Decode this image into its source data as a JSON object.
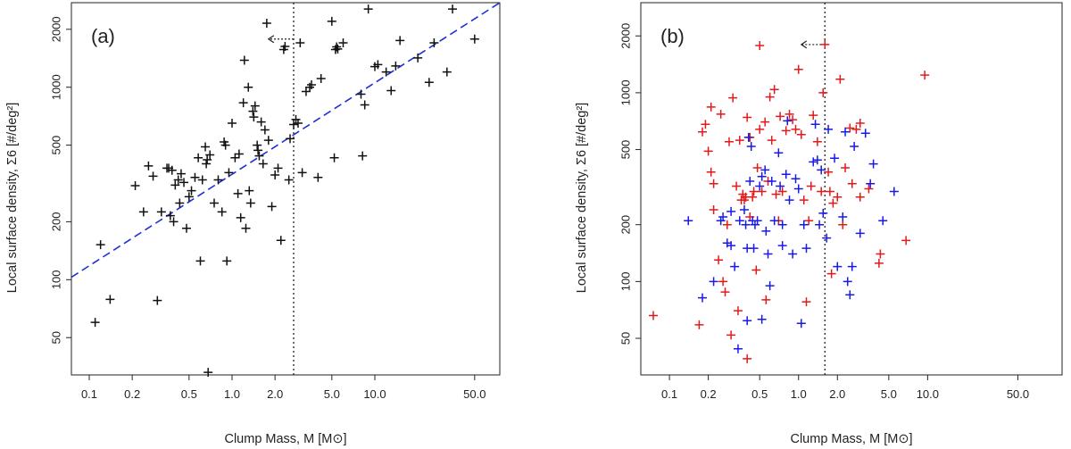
{
  "chart_data": [
    {
      "type": "scatter",
      "panel_label": "(a)",
      "xlabel": "Clump Mass, M [M⊙]",
      "ylabel": "Local surface density, Σ6 [#/deg²]",
      "log_x": true,
      "log_y": true,
      "xlim": [
        0.075,
        75
      ],
      "ylim": [
        32,
        2750
      ],
      "x_ticks": [
        0.1,
        0.2,
        0.5,
        1.0,
        2.0,
        5.0,
        10.0,
        50.0
      ],
      "x_tick_labels": [
        "0.1",
        "0.2",
        "0.5",
        "1.0",
        "2.0",
        "5.0",
        "10.0",
        "50.0"
      ],
      "y_ticks": [
        50,
        100,
        200,
        500,
        1000,
        2000
      ],
      "y_tick_labels": [
        "50",
        "100",
        "200",
        "500",
        "1000",
        "2000"
      ],
      "vline_x": 2.7,
      "arrow": {
        "from": [
          2.7,
          1780
        ],
        "to": [
          1.8,
          1780
        ]
      },
      "fit_line": {
        "color": "#1f2fd6",
        "style": "dashed",
        "x": [
          0.075,
          75
        ],
        "y": [
          103,
          2750
        ]
      },
      "series": [
        {
          "color": "#111111",
          "points": [
            [
              0.11,
              60
            ],
            [
              0.12,
              152
            ],
            [
              0.14,
              79
            ],
            [
              0.21,
              308
            ],
            [
              0.24,
              225
            ],
            [
              0.26,
              390
            ],
            [
              0.28,
              345
            ],
            [
              0.3,
              78
            ],
            [
              0.32,
              225
            ],
            [
              0.35,
              380
            ],
            [
              0.36,
              380
            ],
            [
              0.37,
              215
            ],
            [
              0.38,
              370
            ],
            [
              0.39,
              200
            ],
            [
              0.4,
              310
            ],
            [
              0.42,
              330
            ],
            [
              0.43,
              250
            ],
            [
              0.44,
              355
            ],
            [
              0.46,
              320
            ],
            [
              0.48,
              185
            ],
            [
              0.5,
              270
            ],
            [
              0.52,
              290
            ],
            [
              0.55,
              340
            ],
            [
              0.58,
              430
            ],
            [
              0.6,
              125
            ],
            [
              0.62,
              330
            ],
            [
              0.65,
              490
            ],
            [
              0.66,
              400
            ],
            [
              0.67,
              420
            ],
            [
              0.68,
              33
            ],
            [
              0.7,
              445
            ],
            [
              0.75,
              250
            ],
            [
              0.8,
              330
            ],
            [
              0.85,
              225
            ],
            [
              0.88,
              520
            ],
            [
              0.9,
              500
            ],
            [
              0.92,
              125
            ],
            [
              0.95,
              360
            ],
            [
              1.0,
              650
            ],
            [
              1.05,
              430
            ],
            [
              1.1,
              280
            ],
            [
              1.12,
              450
            ],
            [
              1.15,
              210
            ],
            [
              1.2,
              830
            ],
            [
              1.22,
              1380
            ],
            [
              1.25,
              185
            ],
            [
              1.3,
              1000
            ],
            [
              1.32,
              290
            ],
            [
              1.35,
              250
            ],
            [
              1.4,
              750
            ],
            [
              1.42,
              700
            ],
            [
              1.45,
              800
            ],
            [
              1.5,
              500
            ],
            [
              1.52,
              470
            ],
            [
              1.55,
              440
            ],
            [
              1.6,
              660
            ],
            [
              1.65,
              400
            ],
            [
              1.7,
              600
            ],
            [
              1.75,
              2150
            ],
            [
              1.8,
              530
            ],
            [
              1.9,
              240
            ],
            [
              2.0,
              350
            ],
            [
              2.1,
              380
            ],
            [
              2.2,
              160
            ],
            [
              2.3,
              1570
            ],
            [
              2.35,
              1630
            ],
            [
              2.5,
              330
            ],
            [
              2.55,
              540
            ],
            [
              2.7,
              640
            ],
            [
              2.8,
              680
            ],
            [
              2.9,
              650
            ],
            [
              3.0,
              1700
            ],
            [
              3.1,
              360
            ],
            [
              3.3,
              950
            ],
            [
              3.5,
              1000
            ],
            [
              3.6,
              1030
            ],
            [
              4.0,
              340
            ],
            [
              4.2,
              1110
            ],
            [
              5.0,
              2200
            ],
            [
              5.2,
              430
            ],
            [
              5.3,
              1570
            ],
            [
              5.4,
              1620
            ],
            [
              5.5,
              1580
            ],
            [
              6.0,
              1700
            ],
            [
              8.0,
              920
            ],
            [
              8.2,
              440
            ],
            [
              8.5,
              810
            ],
            [
              9.0,
              2550
            ],
            [
              10.0,
              1280
            ],
            [
              10.5,
              1310
            ],
            [
              12.0,
              1200
            ],
            [
              13.0,
              960
            ],
            [
              14.0,
              1290
            ],
            [
              15.0,
              1750
            ],
            [
              20.0,
              1420
            ],
            [
              24.0,
              1060
            ],
            [
              26.0,
              1700
            ],
            [
              32.0,
              1200
            ],
            [
              35.0,
              2550
            ],
            [
              50.0,
              1780
            ]
          ]
        }
      ]
    },
    {
      "type": "scatter",
      "panel_label": "(b)",
      "xlabel": "Clump Mass, M [M⊙]",
      "ylabel": "Local surface density, Σ6 [#/deg²]",
      "log_x": true,
      "log_y": true,
      "xlim": [
        0.06,
        110
      ],
      "ylim": [
        32,
        3000
      ],
      "x_ticks": [
        0.1,
        0.2,
        0.5,
        1.0,
        2.0,
        5.0,
        10.0,
        50.0
      ],
      "x_tick_labels": [
        "0.1",
        "0.2",
        "0.5",
        "1.0",
        "2.0",
        "5.0",
        "10.0",
        "50.0"
      ],
      "y_ticks": [
        50,
        100,
        200,
        500,
        1000,
        2000
      ],
      "y_tick_labels": [
        "50",
        "100",
        "200",
        "500",
        "1000",
        "2000"
      ],
      "vline_x": 1.6,
      "arrow": {
        "from": [
          1.6,
          1800
        ],
        "to": [
          1.05,
          1800
        ]
      },
      "series": [
        {
          "color": "#e31a1c",
          "points": [
            [
              0.075,
              66
            ],
            [
              0.17,
              59
            ],
            [
              0.18,
              620
            ],
            [
              0.19,
              680
            ],
            [
              0.2,
              490
            ],
            [
              0.21,
              840
            ],
            [
              0.21,
              380
            ],
            [
              0.22,
              330
            ],
            [
              0.22,
              240
            ],
            [
              0.24,
              130
            ],
            [
              0.25,
              770
            ],
            [
              0.26,
              100
            ],
            [
              0.27,
              88
            ],
            [
              0.28,
              200
            ],
            [
              0.29,
              550
            ],
            [
              0.3,
              52
            ],
            [
              0.31,
              940
            ],
            [
              0.33,
              320
            ],
            [
              0.34,
              70
            ],
            [
              0.35,
              560
            ],
            [
              0.36,
              270
            ],
            [
              0.37,
              290
            ],
            [
              0.38,
              270
            ],
            [
              0.39,
              280
            ],
            [
              0.4,
              39
            ],
            [
              0.4,
              740
            ],
            [
              0.42,
              580
            ],
            [
              0.42,
              220
            ],
            [
              0.44,
              280
            ],
            [
              0.45,
              300
            ],
            [
              0.47,
              115
            ],
            [
              0.48,
              400
            ],
            [
              0.5,
              1780
            ],
            [
              0.5,
              640
            ],
            [
              0.52,
              300
            ],
            [
              0.55,
              700
            ],
            [
              0.56,
              80
            ],
            [
              0.58,
              340
            ],
            [
              0.6,
              950
            ],
            [
              0.62,
              560
            ],
            [
              0.65,
              1040
            ],
            [
              0.67,
              290
            ],
            [
              0.7,
              210
            ],
            [
              0.72,
              750
            ],
            [
              0.75,
              300
            ],
            [
              0.8,
              630
            ],
            [
              0.85,
              770
            ],
            [
              0.9,
              720
            ],
            [
              0.95,
              640
            ],
            [
              1.0,
              1330
            ],
            [
              1.05,
              600
            ],
            [
              1.1,
              270
            ],
            [
              1.15,
              78
            ],
            [
              1.2,
              210
            ],
            [
              1.25,
              320
            ],
            [
              1.3,
              760
            ],
            [
              1.4,
              550
            ],
            [
              1.5,
              300
            ],
            [
              1.55,
              1000
            ],
            [
              1.6,
              1800
            ],
            [
              1.7,
              380
            ],
            [
              1.75,
              300
            ],
            [
              1.8,
              110
            ],
            [
              1.85,
              260
            ],
            [
              2.0,
              280
            ],
            [
              2.1,
              1180
            ],
            [
              2.2,
              200
            ],
            [
              2.3,
              400
            ],
            [
              2.5,
              650
            ],
            [
              2.6,
              330
            ],
            [
              2.8,
              640
            ],
            [
              3.0,
              690
            ],
            [
              3.0,
              280
            ],
            [
              3.5,
              310
            ],
            [
              4.2,
              125
            ],
            [
              4.3,
              140
            ],
            [
              6.8,
              165
            ],
            [
              9.5,
              1240
            ]
          ]
        },
        {
          "color": "#1a1ae6",
          "points": [
            [
              0.14,
              210
            ],
            [
              0.18,
              82
            ],
            [
              0.22,
              100
            ],
            [
              0.25,
              210
            ],
            [
              0.26,
              220
            ],
            [
              0.28,
              160
            ],
            [
              0.3,
              155
            ],
            [
              0.3,
              235
            ],
            [
              0.32,
              120
            ],
            [
              0.34,
              44
            ],
            [
              0.35,
              210
            ],
            [
              0.38,
              240
            ],
            [
              0.39,
              200
            ],
            [
              0.4,
              62
            ],
            [
              0.4,
              150
            ],
            [
              0.41,
              580
            ],
            [
              0.42,
              340
            ],
            [
              0.43,
              520
            ],
            [
              0.44,
              210
            ],
            [
              0.45,
              150
            ],
            [
              0.46,
              200
            ],
            [
              0.48,
              210
            ],
            [
              0.5,
              320
            ],
            [
              0.52,
              360
            ],
            [
              0.52,
              63
            ],
            [
              0.55,
              390
            ],
            [
              0.56,
              185
            ],
            [
              0.58,
              140
            ],
            [
              0.6,
              95
            ],
            [
              0.62,
              340
            ],
            [
              0.65,
              210
            ],
            [
              0.7,
              480
            ],
            [
              0.72,
              320
            ],
            [
              0.75,
              200
            ],
            [
              0.75,
              155
            ],
            [
              0.8,
              370
            ],
            [
              0.82,
              710
            ],
            [
              0.85,
              270
            ],
            [
              0.9,
              140
            ],
            [
              0.95,
              350
            ],
            [
              1.0,
              310
            ],
            [
              1.05,
              60
            ],
            [
              1.1,
              200
            ],
            [
              1.15,
              150
            ],
            [
              1.3,
              430
            ],
            [
              1.35,
              680
            ],
            [
              1.4,
              440
            ],
            [
              1.45,
              200
            ],
            [
              1.5,
              390
            ],
            [
              1.55,
              230
            ],
            [
              1.65,
              170
            ],
            [
              1.7,
              640
            ],
            [
              1.9,
              450
            ],
            [
              2.0,
              120
            ],
            [
              2.2,
              220
            ],
            [
              2.3,
              620
            ],
            [
              2.4,
              100
            ],
            [
              2.5,
              85
            ],
            [
              2.6,
              120
            ],
            [
              2.7,
              520
            ],
            [
              3.0,
              180
            ],
            [
              3.3,
              610
            ],
            [
              3.6,
              330
            ],
            [
              3.8,
              420
            ],
            [
              4.5,
              210
            ],
            [
              5.5,
              300
            ]
          ]
        }
      ]
    }
  ]
}
